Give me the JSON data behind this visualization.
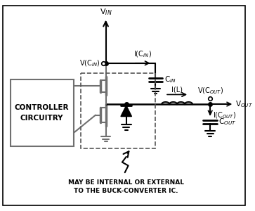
{
  "bg_color": "#ffffff",
  "border_color": "#000000",
  "line_color": "#000000",
  "gray_color": "#707070",
  "dashed_color": "#555555",
  "fig_width": 3.63,
  "fig_height": 3.0,
  "caption": "MAY BE INTERNAL OR EXTERNAL\nTO THE BUCK-CONVERTER IC.",
  "label_VIN": "V$_{IN}$",
  "label_VCIN": "V(C$_{IN}$)",
  "label_ICIN": "I(C$_{IN}$)",
  "label_CIN": "C$_{IN}$",
  "label_VCOUT": "V(C$_{OUT}$)",
  "label_VOUT": "V$_{OUT}$",
  "label_IL": "I(L)",
  "label_ICOUT": "I(C$_{OUT}$)",
  "label_COUT": "C$_{OUT}$",
  "label_controller": "CONTROLLER\nCIRCUITRY"
}
